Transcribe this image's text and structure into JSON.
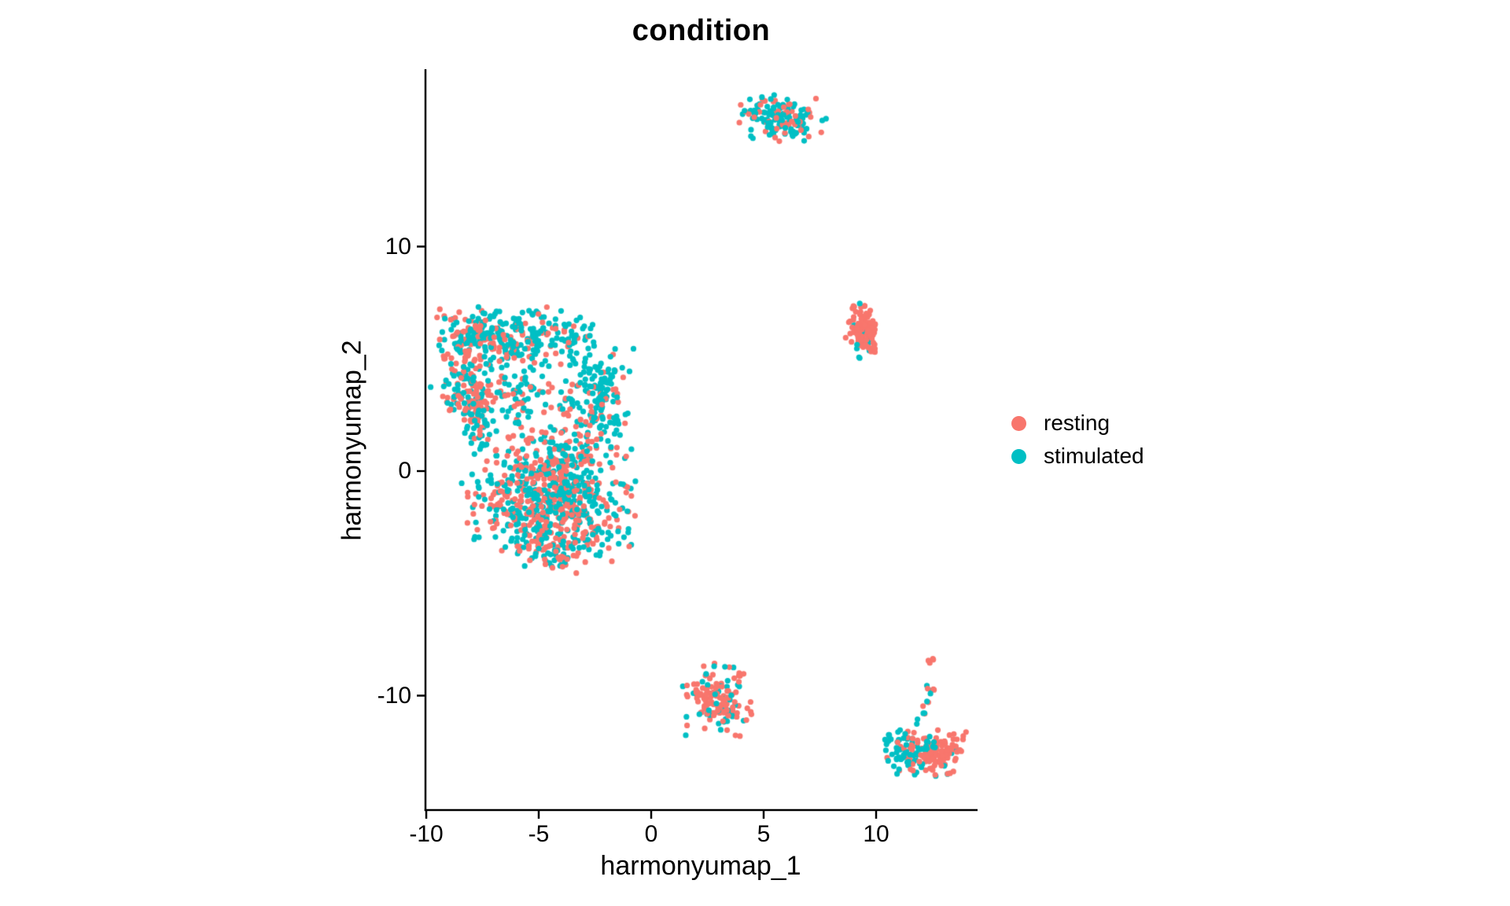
{
  "title": "condition",
  "legend": {
    "items": [
      {
        "label": "resting",
        "color": "#F8766D"
      },
      {
        "label": "stimulated",
        "color": "#00BFC4"
      }
    ]
  },
  "axes": {
    "x": {
      "label": "harmonyumap_1",
      "tick_labels": [
        "-10",
        "-5",
        "0",
        "5",
        "10"
      ],
      "tick_values": [
        -10,
        -5,
        0,
        5,
        10
      ],
      "range": [
        -10.1,
        14.5
      ]
    },
    "y": {
      "label": "harmonyumap_2",
      "tick_labels": [
        "10",
        "0",
        "-10"
      ],
      "tick_values": [
        10,
        0,
        -10
      ],
      "range": [
        -15.1,
        17.9
      ]
    }
  },
  "chart_data": {
    "type": "scatter",
    "title": "condition",
    "xlabel": "harmonyumap_1",
    "ylabel": "harmonyumap_2",
    "series": [
      "resting",
      "stimulated"
    ],
    "colors": {
      "resting": "#F8766D",
      "stimulated": "#00BFC4"
    },
    "point_radius_px": 3.6,
    "legend_position": "right",
    "grid": false,
    "xlim": [
      -10.1,
      14.5
    ],
    "ylim": [
      -15.1,
      17.9
    ],
    "clusters": [
      {
        "name": "top-cluster",
        "center": [
          5.85,
          15.7
        ],
        "sd": [
          0.85,
          0.46
        ],
        "rot": -0.15,
        "n": 160,
        "resting_frac": 0.28
      },
      {
        "name": "right-upper-blob",
        "center": [
          9.45,
          6.3
        ],
        "sd": [
          0.38,
          0.52
        ],
        "rot": 0.25,
        "n": 115,
        "resting_frac": 0.96
      },
      {
        "name": "right-upper-teal-tip",
        "center": [
          9.2,
          5.35
        ],
        "sd": [
          0.12,
          0.15
        ],
        "rot": 0,
        "n": 4,
        "resting_frac": 0.0
      },
      {
        "name": "left-top-west",
        "center": [
          -7.75,
          6.1
        ],
        "sd": [
          0.95,
          0.6
        ],
        "rot": 0,
        "n": 140,
        "resting_frac": 0.45
      },
      {
        "name": "left-top-east",
        "center": [
          -5.1,
          5.9
        ],
        "sd": [
          1.15,
          0.7
        ],
        "rot": 0,
        "n": 170,
        "resting_frac": 0.22
      },
      {
        "name": "left-west-arm",
        "center": [
          -8.3,
          4.2
        ],
        "sd": [
          0.5,
          0.95
        ],
        "rot": 0,
        "n": 80,
        "resting_frac": 0.55
      },
      {
        "name": "left-east-arm",
        "center": [
          -2.4,
          3.3
        ],
        "sd": [
          0.7,
          1.4
        ],
        "rot": 0,
        "n": 170,
        "resting_frac": 0.28
      },
      {
        "name": "left-ring-bottom",
        "center": [
          -5.9,
          3.5
        ],
        "sd": [
          1.05,
          0.65
        ],
        "rot": 0,
        "n": 90,
        "resting_frac": 0.35
      },
      {
        "name": "left-sw-arm",
        "center": [
          -8.0,
          2.75
        ],
        "sd": [
          0.5,
          1.0
        ],
        "rot": 0.45,
        "n": 90,
        "resting_frac": 0.5
      },
      {
        "name": "left-main-blob",
        "center": [
          -4.5,
          -1.1
        ],
        "sd": [
          1.65,
          1.4
        ],
        "rot": 0,
        "n": 720,
        "resting_frac": 0.48
      },
      {
        "name": "left-main-tail",
        "center": [
          -4.3,
          -3.6
        ],
        "sd": [
          0.8,
          0.45
        ],
        "rot": 0,
        "n": 50,
        "resting_frac": 0.5
      },
      {
        "name": "left-detached-dots",
        "center": [
          -8.8,
          3.05
        ],
        "sd": [
          0.18,
          0.18
        ],
        "rot": 0,
        "n": 5,
        "resting_frac": 0.4
      },
      {
        "name": "left-east-strays",
        "center": [
          -1.75,
          1.7
        ],
        "sd": [
          0.3,
          0.9
        ],
        "rot": 0,
        "n": 8,
        "resting_frac": 0.0
      },
      {
        "name": "bottom-middle-cluster",
        "center": [
          2.95,
          -10.2
        ],
        "sd": [
          0.68,
          0.75
        ],
        "rot": 0,
        "n": 150,
        "resting_frac": 0.72
      },
      {
        "name": "bottom-right-west",
        "center": [
          11.35,
          -12.45
        ],
        "sd": [
          0.55,
          0.5
        ],
        "rot": 0,
        "n": 90,
        "resting_frac": 0.25
      },
      {
        "name": "bottom-right-east",
        "center": [
          12.65,
          -12.65
        ],
        "sd": [
          0.6,
          0.5
        ],
        "rot": 0,
        "n": 110,
        "resting_frac": 0.85
      },
      {
        "name": "bottom-right-tail",
        "center": [
          12.25,
          -10.45
        ],
        "sd": [
          0.15,
          1.0
        ],
        "rot": -0.35,
        "n": 16,
        "resting_frac": 0.5
      },
      {
        "name": "bottom-right-top-dots",
        "center": [
          12.55,
          -8.6
        ],
        "sd": [
          0.15,
          0.22
        ],
        "rot": 0,
        "n": 4,
        "resting_frac": 1.0
      }
    ]
  }
}
